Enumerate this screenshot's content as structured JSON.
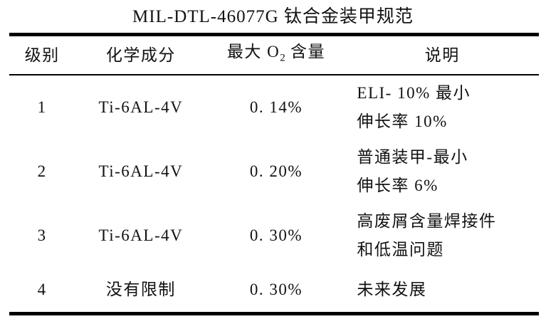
{
  "title": "MIL-DTL-46077G 钛合金装甲规范",
  "table": {
    "headers": {
      "grade": "级别",
      "composition": "化学成分",
      "max_o2": {
        "prefix": "最大 O",
        "sub": "2",
        "suffix": " 含量"
      },
      "description": "说明"
    },
    "rows": [
      {
        "grade": "1",
        "composition": "Ti-6AL-4V",
        "max_o2": "0. 14%",
        "description_line1": "ELI- 10% 最小",
        "description_line2": "伸长率 10%"
      },
      {
        "grade": "2",
        "composition": "Ti-6AL-4V",
        "max_o2": "0. 20%",
        "description_line1": "普通装甲-最小",
        "description_line2": "伸长率 6%"
      },
      {
        "grade": "3",
        "composition": "Ti-6AL-4V",
        "max_o2": "0. 30%",
        "description_line1": "高废屑含量焊接件",
        "description_line2": "和低温问题"
      },
      {
        "grade": "4",
        "composition": "没有限制",
        "max_o2": "0. 30%",
        "description_line1": "未来发展",
        "description_line2": ""
      }
    ]
  }
}
